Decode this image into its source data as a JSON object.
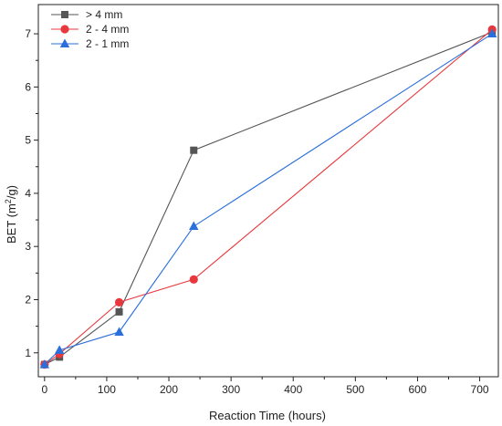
{
  "chart_data": {
    "type": "line",
    "title": "",
    "xlabel": "Reaction Time (hours)",
    "ylabel_main": "BET (m",
    "ylabel_sup": "2",
    "ylabel_end": "/g)",
    "xlim": [
      -10,
      730
    ],
    "ylim": [
      0.55,
      7.55
    ],
    "xticks": [
      0,
      100,
      200,
      300,
      400,
      500,
      600,
      700
    ],
    "yticks": [
      1,
      2,
      3,
      4,
      5,
      6,
      7
    ],
    "legend_position": "top-left",
    "series": [
      {
        "name": "> 4 mm",
        "color": "#555555",
        "marker": "square",
        "x": [
          0,
          24,
          120,
          240,
          720
        ],
        "y": [
          0.78,
          0.92,
          1.77,
          4.81,
          7.03
        ]
      },
      {
        "name": "2 - 4 mm",
        "color": "#e8383d",
        "marker": "circle",
        "x": [
          0,
          24,
          120,
          240,
          720
        ],
        "y": [
          0.78,
          0.98,
          1.95,
          2.38,
          7.08
        ]
      },
      {
        "name": "2 - 1 mm",
        "color": "#2a6fdb",
        "marker": "triangle",
        "x": [
          0,
          24,
          120,
          240,
          720
        ],
        "y": [
          0.78,
          1.05,
          1.39,
          3.38,
          7.0
        ]
      }
    ]
  }
}
